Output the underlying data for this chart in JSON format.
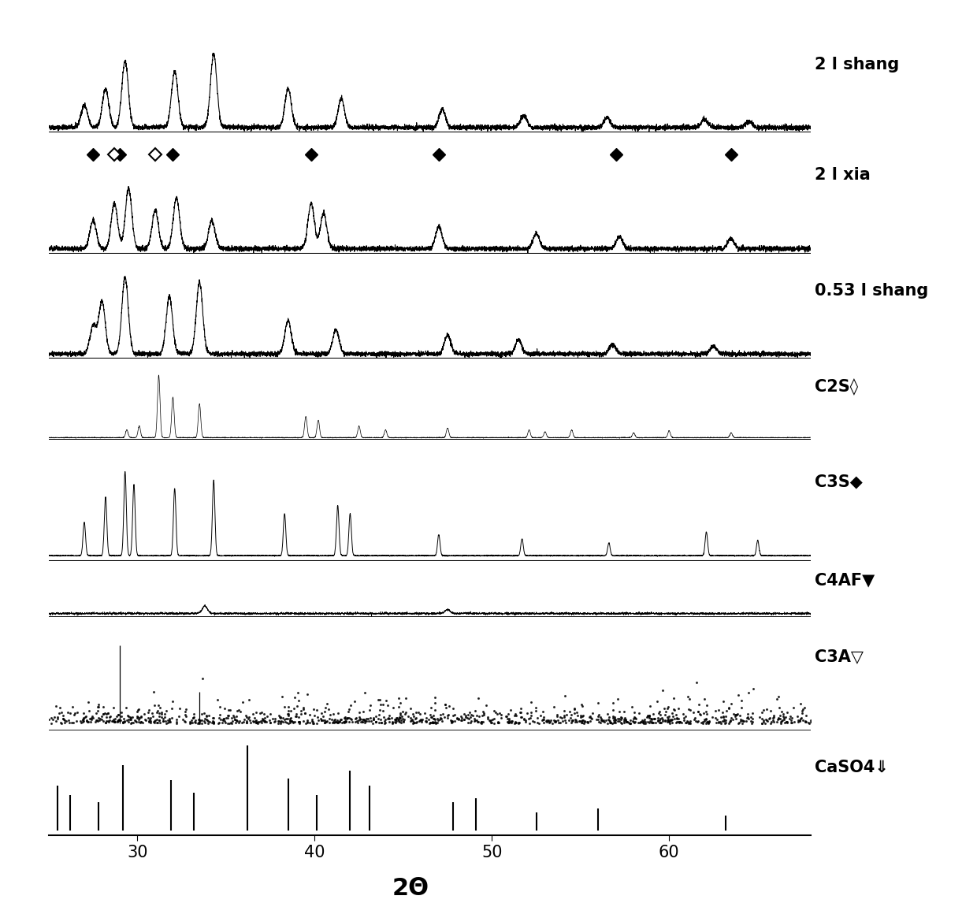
{
  "xmin": 25,
  "xmax": 68,
  "xlabel": "2Θ",
  "background_color": "#ffffff",
  "label_fontsize": 15,
  "tick_fontsize": 15,
  "xlabel_fontsize": 22,
  "shang2_peaks": [
    27.0,
    28.2,
    29.3,
    32.1,
    34.3,
    38.5,
    41.5,
    47.2,
    51.8,
    56.5,
    62.0,
    64.5
  ],
  "shang2_heights": [
    0.22,
    0.38,
    0.65,
    0.55,
    0.72,
    0.38,
    0.28,
    0.18,
    0.12,
    0.1,
    0.08,
    0.06
  ],
  "xia2_peaks": [
    27.5,
    28.7,
    29.5,
    31.0,
    32.2,
    34.2,
    39.8,
    40.5,
    47.0,
    52.5,
    57.2,
    63.5
  ],
  "xia2_heights": [
    0.28,
    0.45,
    0.6,
    0.38,
    0.5,
    0.28,
    0.45,
    0.35,
    0.22,
    0.15,
    0.12,
    0.1
  ],
  "xia2_filled_diamonds": [
    27.5,
    29.0,
    32.0,
    39.8,
    47.0,
    57.0,
    63.5
  ],
  "xia2_open_diamonds": [
    28.7,
    31.0
  ],
  "shang053_peaks": [
    27.5,
    28.0,
    29.3,
    31.8,
    33.5,
    38.5,
    41.2,
    47.5,
    51.5,
    56.8,
    62.5
  ],
  "shang053_heights": [
    0.3,
    0.55,
    0.8,
    0.6,
    0.75,
    0.35,
    0.25,
    0.2,
    0.15,
    0.1,
    0.08
  ],
  "c2s_peaks": [
    29.4,
    30.1,
    31.2,
    32.0,
    33.5,
    39.5,
    40.2,
    42.5,
    44.0,
    47.5,
    52.1,
    53.0,
    54.5,
    58.0,
    60.0,
    63.5
  ],
  "c2s_heights": [
    0.08,
    0.12,
    0.65,
    0.42,
    0.35,
    0.22,
    0.18,
    0.12,
    0.08,
    0.1,
    0.08,
    0.06,
    0.08,
    0.05,
    0.07,
    0.05
  ],
  "c3s_peaks": [
    27.0,
    28.2,
    29.3,
    29.8,
    32.1,
    34.3,
    38.3,
    41.3,
    42.0,
    47.0,
    51.7,
    56.6,
    62.1,
    65.0
  ],
  "c3s_heights": [
    0.4,
    0.7,
    1.0,
    0.85,
    0.8,
    0.9,
    0.5,
    0.6,
    0.5,
    0.25,
    0.2,
    0.15,
    0.28,
    0.18
  ],
  "caso4_peaks": [
    25.5,
    26.2,
    27.8,
    29.2,
    31.9,
    33.2,
    36.2,
    38.5,
    40.1,
    42.0,
    43.1,
    47.8,
    49.1,
    52.5,
    56.0,
    63.2
  ],
  "caso4_heights": [
    0.45,
    0.35,
    0.28,
    0.65,
    0.5,
    0.38,
    0.85,
    0.52,
    0.35,
    0.6,
    0.45,
    0.28,
    0.32,
    0.18,
    0.22,
    0.15
  ],
  "height_ratios": [
    1.3,
    1.5,
    1.3,
    1.0,
    1.5,
    0.7,
    1.4,
    1.3
  ]
}
